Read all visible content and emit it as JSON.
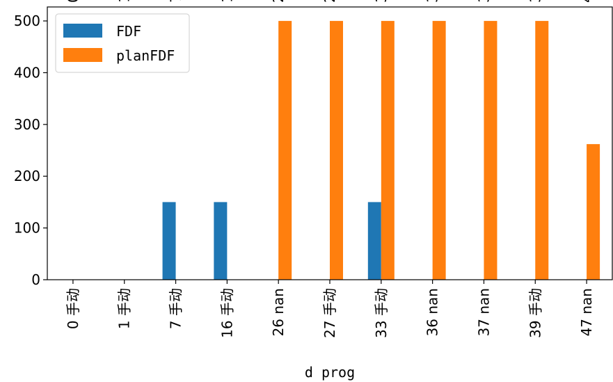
{
  "chart_data": {
    "type": "bar",
    "categories": [
      "0 手动",
      "1 手动",
      "7 手动",
      "16 手动",
      "26 nan",
      "27 手动",
      "33 手动",
      "36 nan",
      "37 nan",
      "39 手动",
      "47 nan"
    ],
    "series": [
      {
        "name": "FDF",
        "color": "#1f77b4",
        "values": [
          0,
          0,
          150,
          150,
          0,
          0,
          150,
          0,
          0,
          0,
          0
        ]
      },
      {
        "name": "planFDF",
        "color": "#ff7f0e",
        "values": [
          0,
          0,
          0,
          0,
          500,
          500,
          500,
          500,
          500,
          500,
          262
        ]
      }
    ],
    "title": "",
    "xlabel": "d prog",
    "ylabel": "",
    "ylim": [
      0,
      527
    ],
    "yticks": [
      0,
      100,
      200,
      300,
      400,
      500
    ],
    "legend": "top-left",
    "grid": false
  }
}
